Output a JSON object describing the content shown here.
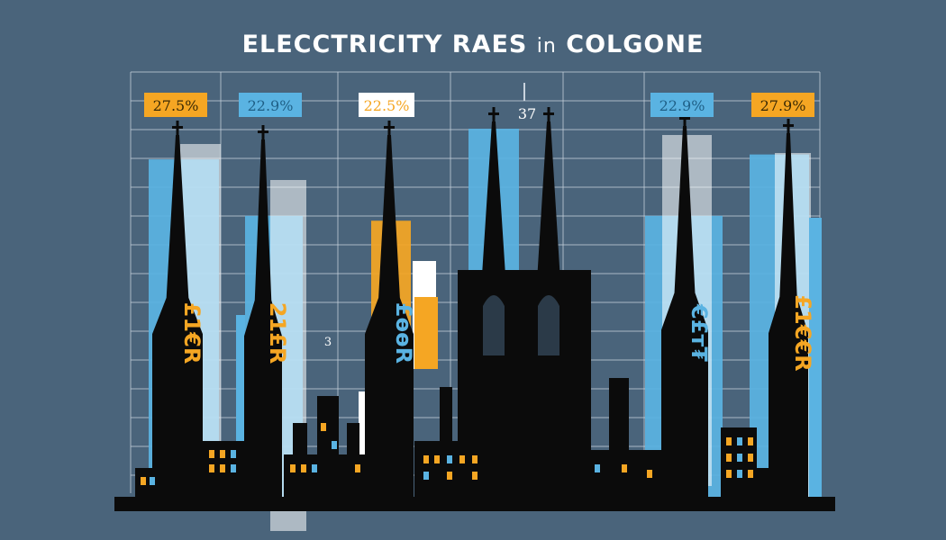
{
  "chart_data": {
    "type": "bar",
    "title": "ELECCTRICITY RAES in COLGONE",
    "title_main": "ELECCTRICITY RAES",
    "title_small": "in",
    "title_end": "COLGONE",
    "xlabel": "",
    "ylabel": "",
    "categories": [
      "",
      "",
      "",
      "",
      "",
      ""
    ],
    "values": [
      27.5,
      22.9,
      22.5,
      37,
      22.9,
      27.9
    ],
    "data_labels": [
      "27.5%",
      "22.9%",
      "22.5%",
      "37",
      "22.9%",
      "27.9%"
    ],
    "tower_text": [
      "£1€R",
      "21£R",
      "£ɵɵR",
      "",
      "€£т₮",
      "£1€€R"
    ],
    "axis_marks": [
      "3",
      "37"
    ],
    "grid": true,
    "colors": {
      "background": "#4a647b",
      "blue": "#5ab3e2",
      "orange": "#f5a623",
      "silhouette": "#0b0b0b",
      "grid": "#c9d3de",
      "label_blue_text": "#1f5f86",
      "label_orange_text": "#3a2a05"
    }
  }
}
